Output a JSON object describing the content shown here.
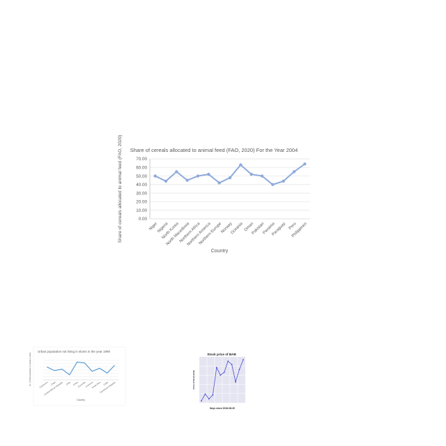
{
  "chart_data": [
    {
      "type": "line",
      "title": "Share of cereals allocated to animal feed (FAO, 2020) For the Year 2004",
      "xlabel": "Country",
      "ylabel": "Share of cereals allocated to animal feed (FAO, 2020)",
      "categories": [
        "Niger",
        "Nigeria",
        "North Korea",
        "North Macedonia",
        "Northern Africa",
        "Northern America",
        "Northern Europe",
        "Norway",
        "Oceania",
        "Oman",
        "Pakistan",
        "Panama",
        "Paraguay",
        "Peru",
        "Philippines"
      ],
      "values": [
        50,
        44,
        55,
        45,
        50,
        52,
        42,
        48,
        63,
        52,
        50,
        40,
        44,
        55,
        64
      ],
      "ylim": [
        0,
        70
      ],
      "yticks": [
        "0.00",
        "10.00",
        "20.00",
        "30.00",
        "40.00",
        "50.00",
        "60.00",
        "70.00"
      ],
      "grid": true,
      "color": "#8faadc"
    },
    {
      "type": "line",
      "title": "Urban population not living in slums in the year 1990",
      "xlabel": "Country",
      "ylabel": "No. of Urban population not living in slums",
      "categories": [
        "Cameroon",
        "Chad",
        "Central African Republic",
        "Chile",
        "China",
        "Colombia",
        "Comoros",
        "Costa Rica",
        "Cuba",
        "Dominican Republic"
      ],
      "values": [
        0.72,
        0.52,
        0.6,
        0.28,
        1.0,
        0.95,
        0.48,
        0.65,
        0.38,
        0.82
      ],
      "ylim": [
        0,
        1.1
      ],
      "grid": true,
      "color": "#5b9bd5"
    },
    {
      "type": "line",
      "title": "Stock price of BAB",
      "xlabel": "Days since 2016-08-20",
      "ylabel": "Price of Stock BAB",
      "x": [
        0,
        1,
        2,
        3,
        4,
        5,
        6,
        7,
        8,
        9,
        10,
        11
      ],
      "values": [
        22.08,
        22.36,
        22.16,
        22.32,
        23.46,
        23.14,
        23.26,
        23.72,
        23.58,
        22.86,
        23.38,
        23.78
      ],
      "ylim": [
        22.0,
        23.9
      ],
      "grid": true,
      "color": "#4a4fcf",
      "background": "#e5e5f2"
    }
  ]
}
